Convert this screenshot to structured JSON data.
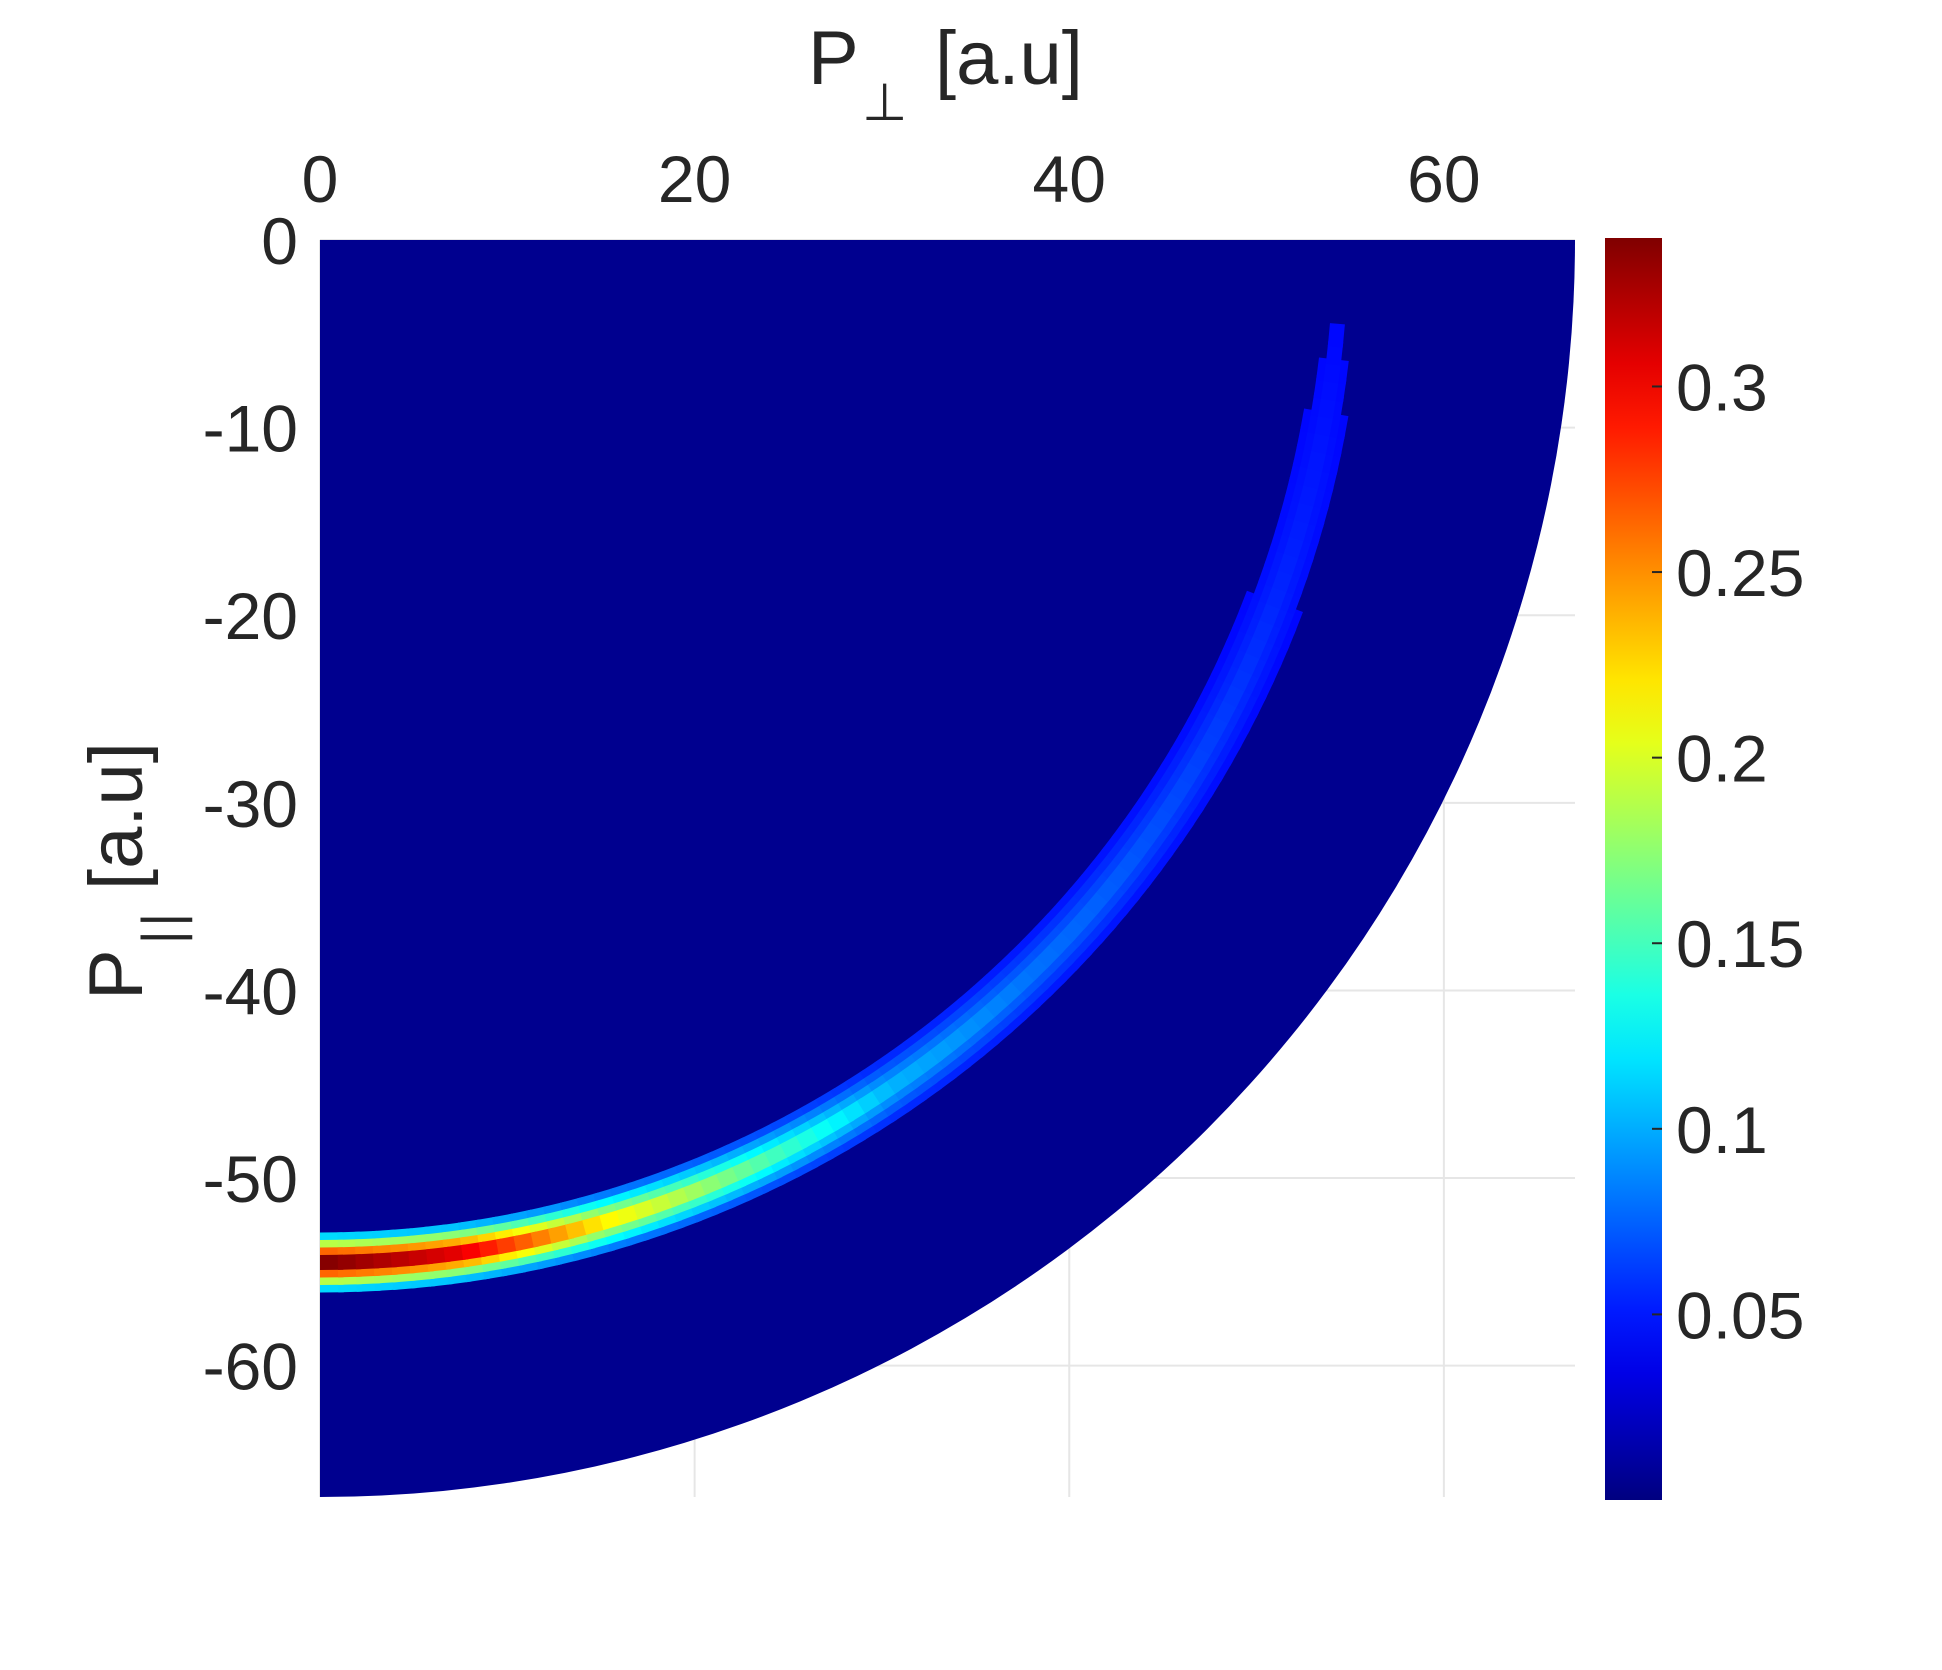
{
  "chart_data": {
    "type": "heatmap",
    "title": "",
    "xlabel": "P",
    "xlabel_subscript": "⊥",
    "xlabel_unit": "[a.u]",
    "ylabel": "P",
    "ylabel_subscript": "||",
    "ylabel_unit": "[a.u]",
    "x_axis_location": "top",
    "xlim": [
      0,
      67
    ],
    "ylim": [
      -67,
      0
    ],
    "x_ticks": [
      0,
      20,
      40,
      60
    ],
    "x_tick_labels": [
      "0",
      "20",
      "40",
      "60"
    ],
    "y_ticks": [
      0,
      -10,
      -20,
      -30,
      -40,
      -50,
      -60
    ],
    "y_tick_labels": [
      "0",
      "-10",
      "-20",
      "-30",
      "-40",
      "-50",
      "-60"
    ],
    "grid": true,
    "domain": "quarter disc of radius 67",
    "colormap": "jet",
    "colorbar": {
      "location": "right",
      "range": [
        0,
        0.34
      ],
      "ticks": [
        0.05,
        0.1,
        0.15,
        0.2,
        0.25,
        0.3
      ],
      "tick_labels": [
        "0.05",
        "0.1",
        "0.15",
        "0.2",
        "0.25",
        "0.3"
      ]
    },
    "ring": {
      "description": "arc of high density in momentum space",
      "radius_points": [
        [
          0,
          54.5
        ],
        [
          90,
          54.5
        ]
      ],
      "angle_intensity": [
        {
          "angle_deg": 0,
          "value": 0.34
        },
        {
          "angle_deg": 8,
          "value": 0.3
        },
        {
          "angle_deg": 16,
          "value": 0.2
        },
        {
          "angle_deg": 24,
          "value": 0.14
        },
        {
          "angle_deg": 34,
          "value": 0.07
        },
        {
          "angle_deg": 44,
          "value": 0.045
        },
        {
          "angle_deg": 56,
          "value": 0.03
        },
        {
          "angle_deg": 70,
          "value": 0.015
        },
        {
          "angle_deg": 80,
          "value": 0.008
        },
        {
          "angle_deg": 90,
          "value": 0
        }
      ]
    }
  }
}
